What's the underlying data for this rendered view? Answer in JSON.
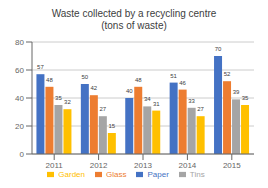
{
  "chart_data": {
    "type": "bar",
    "title": "Waste collected by a recycling centre\n(tons of waste)",
    "categories": [
      "2011",
      "2012",
      "2013",
      "2014",
      "2015"
    ],
    "series": [
      {
        "name": "Paper",
        "color": "#4472c4",
        "values": [
          57,
          50,
          40,
          51,
          70
        ]
      },
      {
        "name": "Glass",
        "color": "#ed7d31",
        "values": [
          48,
          42,
          48,
          46,
          52
        ]
      },
      {
        "name": "Tins",
        "color": "#a5a5a5",
        "values": [
          35,
          27,
          34,
          33,
          39
        ]
      },
      {
        "name": "Garden",
        "color": "#ffc000",
        "values": [
          32,
          15,
          31,
          27,
          35
        ]
      }
    ],
    "ylim": [
      0,
      80
    ],
    "yticks": [
      0,
      20,
      40,
      60,
      80
    ],
    "grid": true,
    "legend": "bottom",
    "data_labels": true
  }
}
